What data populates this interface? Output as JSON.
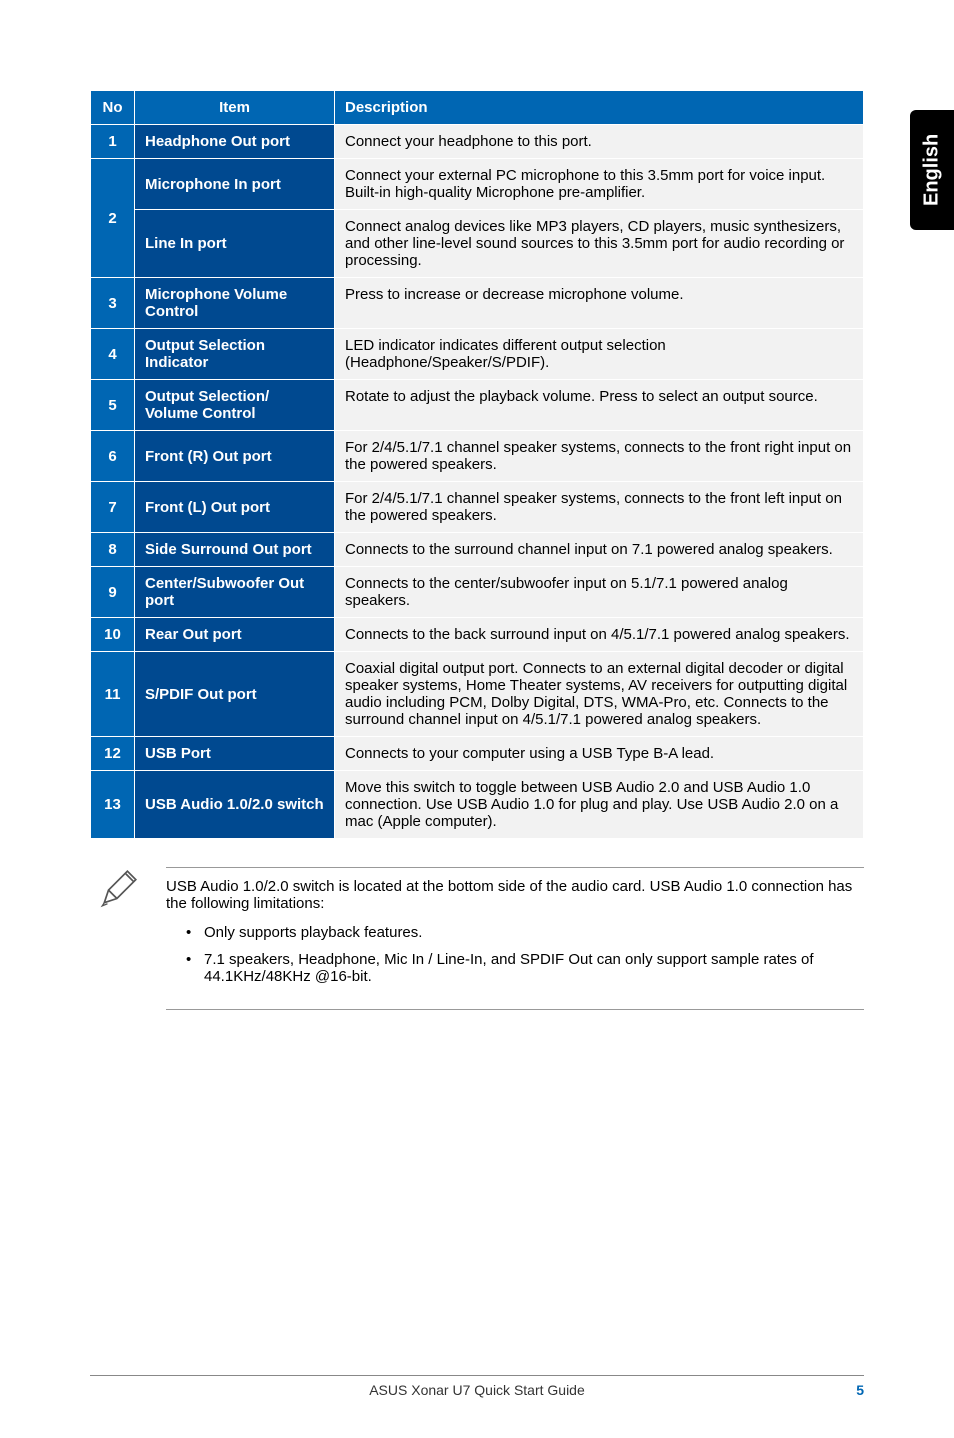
{
  "side_tab": "English",
  "table": {
    "headers": {
      "no": "No",
      "item": "Item",
      "desc": "Description"
    },
    "col_widths": {
      "no": 44,
      "item": 200
    },
    "header_bg": "#0066b3",
    "no_col_bg": "#0066b3",
    "item_col_bg": "#004990",
    "desc_col_bg": "#f2f2f2",
    "header_fg": "#ffffff",
    "rows": [
      {
        "no": "1",
        "item": "Headphone Out port",
        "desc": "Connect your headphone to this port.",
        "rowspan": 1
      },
      {
        "no": "2",
        "item": "Microphone In port",
        "desc": "Connect your external PC microphone to this 3.5mm port for voice input. Built-in high-quality Microphone pre-amplifier.",
        "rowspan": 2
      },
      {
        "no": "",
        "item": "Line In port",
        "desc": "Connect analog devices like MP3 players, CD players, music synthesizers, and other line-level sound sources to this 3.5mm port for audio recording or processing.",
        "rowspan": 0
      },
      {
        "no": "3",
        "item": "Microphone Volume Control",
        "desc": "Press to increase or decrease microphone volume.",
        "rowspan": 1
      },
      {
        "no": "4",
        "item": "Output Selection Indicator",
        "desc": "LED indicator indicates different output selection (Headphone/Speaker/S/PDIF).",
        "rowspan": 1
      },
      {
        "no": "5",
        "item": "Output Selection/ Volume Control",
        "desc": "Rotate to adjust the playback volume. Press to select an output source.",
        "rowspan": 1
      },
      {
        "no": "6",
        "item": "Front (R) Out port",
        "desc": "For 2/4/5.1/7.1 channel speaker systems, connects to the front right input on the powered speakers.",
        "rowspan": 1
      },
      {
        "no": "7",
        "item": "Front (L) Out port",
        "desc": "For 2/4/5.1/7.1 channel speaker systems, connects to the front left input on the powered speakers.",
        "rowspan": 1
      },
      {
        "no": "8",
        "item": "Side Surround Out port",
        "desc": "Connects to the surround channel input on 7.1 powered analog speakers.",
        "rowspan": 1
      },
      {
        "no": "9",
        "item": "Center/Subwoofer Out port",
        "desc": "Connects to the center/subwoofer input on 5.1/7.1 powered analog speakers.",
        "rowspan": 1
      },
      {
        "no": "10",
        "item": "Rear Out port",
        "desc": "Connects to the back surround input on 4/5.1/7.1 powered analog speakers.",
        "rowspan": 1
      },
      {
        "no": "11",
        "item": "S/PDIF Out port",
        "desc": "Coaxial digital output port. Connects to an external digital decoder or digital speaker systems, Home Theater systems, AV receivers for outputting digital audio including PCM, Dolby Digital, DTS, WMA-Pro, etc. Connects to the surround channel input on 4/5.1/7.1 powered analog speakers.",
        "rowspan": 1
      },
      {
        "no": "12",
        "item": "USB Port",
        "desc": "Connects to your computer using a USB Type B-A lead.",
        "rowspan": 1
      },
      {
        "no": "13",
        "item": "USB Audio 1.0/2.0 switch",
        "desc": "Move this switch to toggle between USB Audio 2.0 and USB Audio 1.0 connection. Use USB Audio 1.0 for plug and play. Use USB Audio 2.0 on a mac (Apple computer).",
        "rowspan": 1
      }
    ]
  },
  "note": {
    "intro": "USB Audio 1.0/2.0 switch is located at the bottom side of the audio card. USB Audio 1.0 connection has the following limitations:",
    "bullets": [
      "Only supports playback features.",
      "7.1 speakers, Headphone, Mic In / Line-In, and SPDIF Out can only support sample rates of 44.1KHz/48KHz @16-bit."
    ]
  },
  "footer": {
    "title": "ASUS Xonar U7 Quick Start Guide",
    "page": "5",
    "page_color": "#0066b3"
  }
}
